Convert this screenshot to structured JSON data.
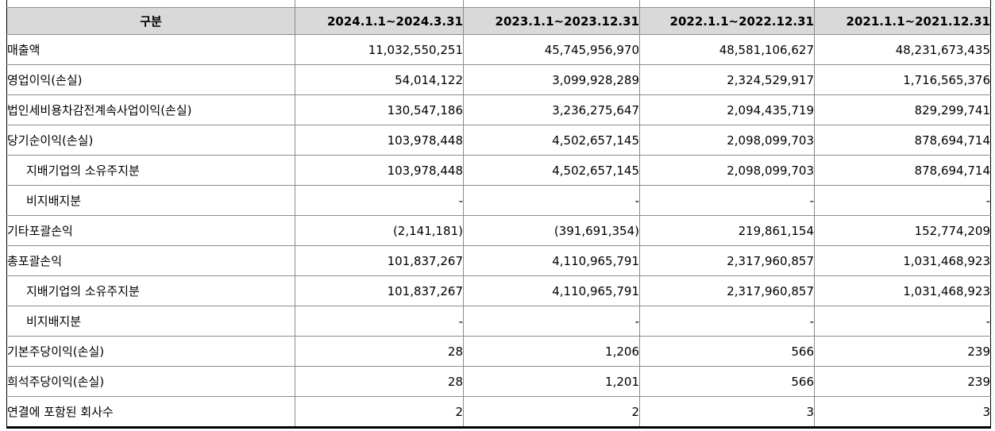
{
  "table": {
    "header": {
      "category": "구분",
      "periods": [
        "2024.1.1~2024.3.31",
        "2023.1.1~2023.12.31",
        "2022.1.1~2022.12.31",
        "2021.1.1~2021.12.31"
      ]
    },
    "rows": [
      {
        "label": "매출액",
        "indent": false,
        "values": [
          "11,032,550,251",
          "45,745,956,970",
          "48,581,106,627",
          "48,231,673,435"
        ]
      },
      {
        "label": "영업이익(손실)",
        "indent": false,
        "values": [
          "54,014,122",
          "3,099,928,289",
          "2,324,529,917",
          "1,716,565,376"
        ]
      },
      {
        "label": "법인세비용차감전계속사업이익(손실)",
        "indent": false,
        "values": [
          "130,547,186",
          "3,236,275,647",
          "2,094,435,719",
          "829,299,741"
        ]
      },
      {
        "label": "당기순이익(손실)",
        "indent": false,
        "values": [
          "103,978,448",
          "4,502,657,145",
          "2,098,099,703",
          "878,694,714"
        ]
      },
      {
        "label": "지배기업의 소유주지분",
        "indent": true,
        "values": [
          "103,978,448",
          "4,502,657,145",
          "2,098,099,703",
          "878,694,714"
        ]
      },
      {
        "label": "비지배지분",
        "indent": true,
        "values": [
          "-",
          "-",
          "-",
          "-"
        ]
      },
      {
        "label": "기타포괄손익",
        "indent": false,
        "values": [
          "(2,141,181)",
          "(391,691,354)",
          "219,861,154",
          "152,774,209"
        ]
      },
      {
        "label": "총포괄손익",
        "indent": false,
        "values": [
          "101,837,267",
          "4,110,965,791",
          "2,317,960,857",
          "1,031,468,923"
        ]
      },
      {
        "label": "지배기업의 소유주지분",
        "indent": true,
        "values": [
          "101,837,267",
          "4,110,965,791",
          "2,317,960,857",
          "1,031,468,923"
        ]
      },
      {
        "label": "비지배지분",
        "indent": true,
        "values": [
          "-",
          "-",
          "-",
          "-"
        ]
      },
      {
        "label": "기본주당이익(손실)",
        "indent": false,
        "values": [
          "28",
          "1,206",
          "566",
          "239"
        ]
      },
      {
        "label": "희석주당이익(손실)",
        "indent": false,
        "values": [
          "28",
          "1,201",
          "566",
          "239"
        ]
      },
      {
        "label": "연결에 포함된 회사수",
        "indent": false,
        "values": [
          "2",
          "2",
          "3",
          "3"
        ]
      }
    ],
    "colors": {
      "header_bg": "#d9d9d9",
      "grid_line": "#8c8c8c",
      "outer_border": "#000000",
      "text": "#000000"
    }
  }
}
